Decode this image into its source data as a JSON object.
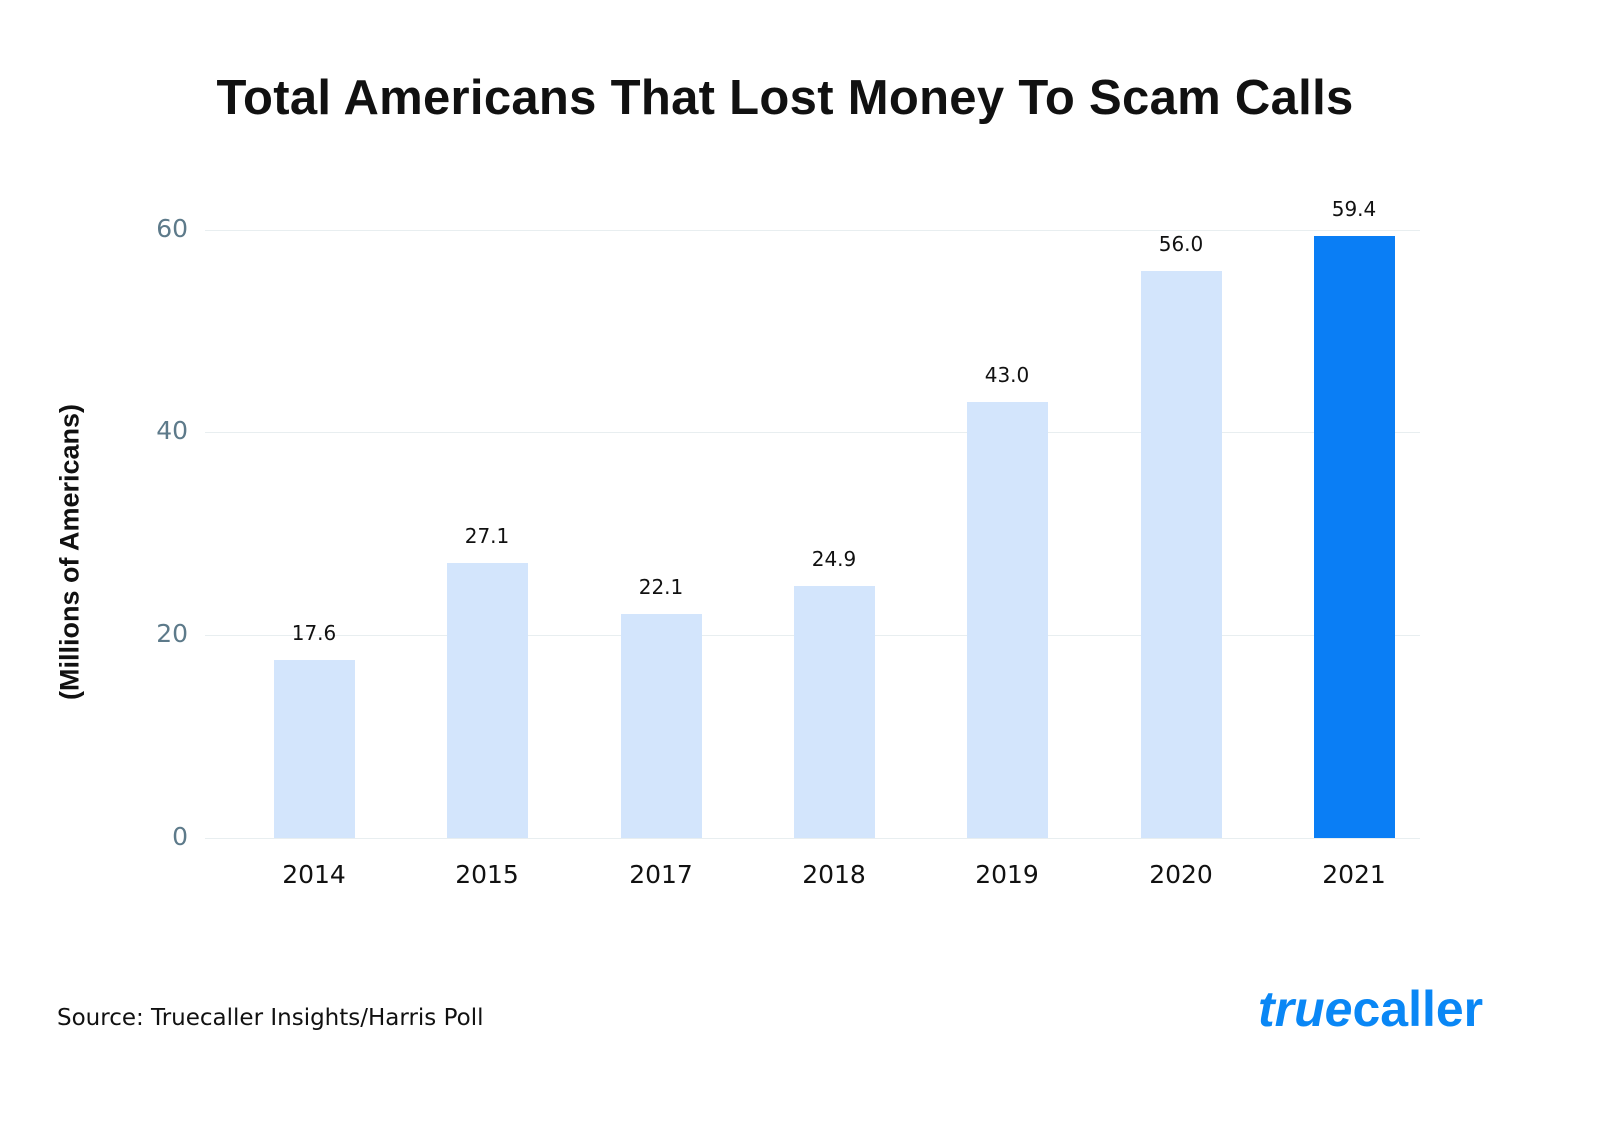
{
  "title": "Total Americans That Lost Money To Scam Calls",
  "ylabel": "(Millions of Americans)",
  "source": "Source: Truecaller Insights/Harris Poll",
  "logo": {
    "part1": "true",
    "part2": "caller"
  },
  "yticks": [
    "0",
    "20",
    "40",
    "60"
  ],
  "bars": [
    {
      "label": "2014",
      "value": "17.6"
    },
    {
      "label": "2015",
      "value": "27.1"
    },
    {
      "label": "2017",
      "value": "22.1"
    },
    {
      "label": "2018",
      "value": "24.9"
    },
    {
      "label": "2019",
      "value": "43.0"
    },
    {
      "label": "2020",
      "value": "56.0"
    },
    {
      "label": "2021",
      "value": "59.4"
    }
  ],
  "colors": {
    "bar": "#d3e5fc",
    "highlight": "#0a7ef5",
    "tick": "#5d7a8a"
  },
  "chart_data": {
    "type": "bar",
    "title": "Total Americans That Lost Money To Scam Calls",
    "xlabel": "",
    "ylabel": "(Millions of Americans)",
    "categories": [
      "2014",
      "2015",
      "2017",
      "2018",
      "2019",
      "2020",
      "2021"
    ],
    "values": [
      17.6,
      27.1,
      22.1,
      24.9,
      43.0,
      56.0,
      59.4
    ],
    "ylim": [
      0,
      60
    ],
    "yticks": [
      0,
      20,
      40,
      60
    ],
    "grid": true,
    "highlight": "2021",
    "source": "Source: Truecaller Insights/Harris Poll"
  }
}
